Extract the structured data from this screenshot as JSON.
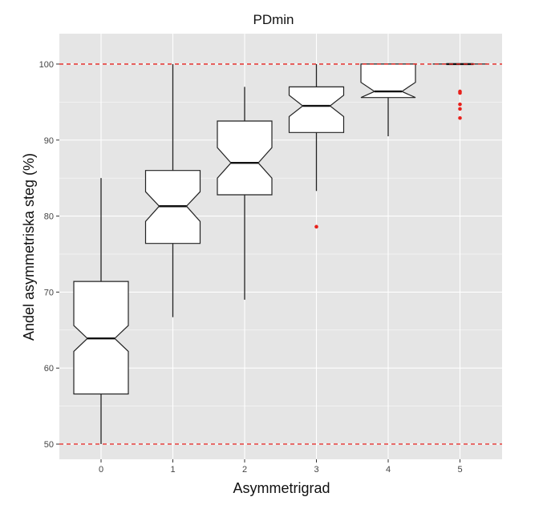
{
  "chart_data": {
    "type": "box",
    "title": "PDmin",
    "xlabel": "Asymmetrigrad",
    "ylabel": "Andel asymmetriska steg (%)",
    "categories": [
      "0",
      "1",
      "2",
      "3",
      "4",
      "5"
    ],
    "ylim": [
      48,
      104
    ],
    "yticks": [
      50,
      60,
      70,
      80,
      90,
      100
    ],
    "reference_lines": [
      50,
      100
    ],
    "grid": true,
    "colors": {
      "panel_background": "#e5e5e5",
      "grid": "#ffffff",
      "reference_line": "#e8211c",
      "outlier": "#e8211c",
      "box_fill": "#ffffff",
      "box_stroke": "#222222"
    },
    "boxes": [
      {
        "category": "0",
        "lower_whisker": 50,
        "q1": 56.6,
        "median": 63.9,
        "q3": 71.4,
        "upper_whisker": 85,
        "notch_low": 62.2,
        "notch_high": 65.6,
        "outliers": []
      },
      {
        "category": "1",
        "lower_whisker": 66.7,
        "q1": 76.4,
        "median": 81.3,
        "q3": 86,
        "upper_whisker": 100,
        "notch_low": 79.3,
        "notch_high": 83.2,
        "outliers": []
      },
      {
        "category": "2",
        "lower_whisker": 69,
        "q1": 82.8,
        "median": 87,
        "q3": 92.5,
        "upper_whisker": 97,
        "notch_low": 85,
        "notch_high": 89,
        "outliers": []
      },
      {
        "category": "3",
        "lower_whisker": 83.3,
        "q1": 91,
        "median": 94.5,
        "q3": 97,
        "upper_whisker": 100,
        "notch_low": 93.1,
        "notch_high": 95.9,
        "outliers": [
          78.6
        ]
      },
      {
        "category": "4",
        "lower_whisker": 90.5,
        "q1": 95.6,
        "median": 96.4,
        "q3": 100,
        "upper_whisker": 100,
        "notch_low": 95.1,
        "notch_high": 97.6,
        "outliers": []
      },
      {
        "category": "5",
        "lower_whisker": 100,
        "q1": 100,
        "median": 100,
        "q3": 100,
        "upper_whisker": 100,
        "notch_low": 100,
        "notch_high": 100,
        "outliers": [
          96.4,
          96.2,
          94.7,
          94.1,
          92.9
        ]
      }
    ]
  }
}
